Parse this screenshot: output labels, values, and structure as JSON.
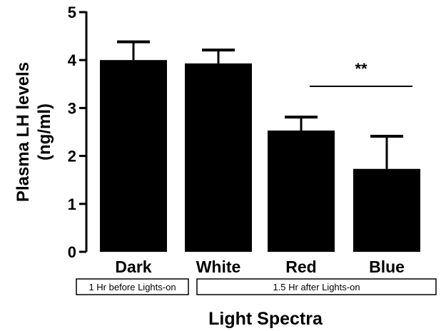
{
  "chart_data": {
    "type": "bar",
    "categories": [
      "Dark",
      "White",
      "Red",
      "Blue"
    ],
    "values": [
      4.0,
      3.93,
      2.53,
      1.73
    ],
    "errors": [
      0.38,
      0.28,
      0.28,
      0.68
    ],
    "xlabel": "Light Spectra",
    "ylabel_lines": [
      "Plasma LH levels",
      "(ng/ml)"
    ],
    "ylim": [
      0,
      5
    ],
    "yticks": [
      0,
      1,
      2,
      3,
      4,
      5
    ],
    "bar_color": "#000000",
    "grid": false,
    "group_boxes": [
      {
        "label": "1 Hr before Lights-on",
        "categories": [
          "Dark"
        ]
      },
      {
        "label": "1.5  Hr after Lights-on",
        "categories": [
          "White",
          "Red",
          "Blue"
        ]
      }
    ],
    "significance": {
      "label": "**",
      "from": "Red",
      "to": "Blue"
    }
  }
}
